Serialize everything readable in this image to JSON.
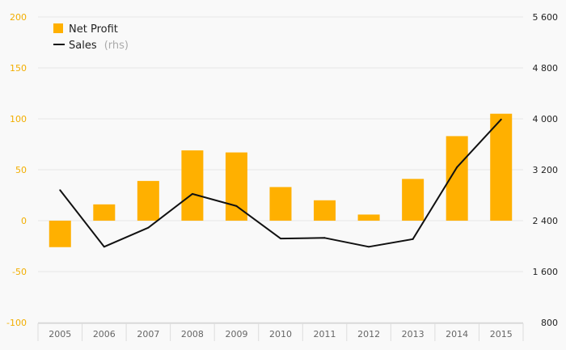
{
  "chart_data": {
    "type": "bar+line",
    "categories": [
      "2005",
      "2006",
      "2007",
      "2008",
      "2009",
      "2010",
      "2011",
      "2012",
      "2013",
      "2014",
      "2015"
    ],
    "series": [
      {
        "name": "Net Profit",
        "type": "bar",
        "axis": "left",
        "color": "#ffb000",
        "values": [
          -26,
          16,
          39,
          69,
          67,
          33,
          20,
          6,
          41,
          83,
          105
        ]
      },
      {
        "name": "Sales",
        "name_suffix": "(rhs)",
        "type": "line",
        "axis": "right",
        "color": "#111111",
        "values": [
          2880,
          1990,
          2290,
          2820,
          2630,
          2120,
          2130,
          1990,
          2110,
          3240,
          3990
        ]
      }
    ],
    "y_left": {
      "range": [
        -100,
        200
      ],
      "ticks": [
        "200",
        "150",
        "100",
        "50",
        "0",
        "-50",
        "-100"
      ],
      "color": "#f2ae00"
    },
    "y_right": {
      "range": [
        800,
        5600
      ],
      "ticks": [
        "5 600",
        "4 800",
        "4 000",
        "3 200",
        "2 400",
        "1 600",
        "800"
      ],
      "color": "#222222"
    },
    "grid": true,
    "legend": "top-left"
  }
}
